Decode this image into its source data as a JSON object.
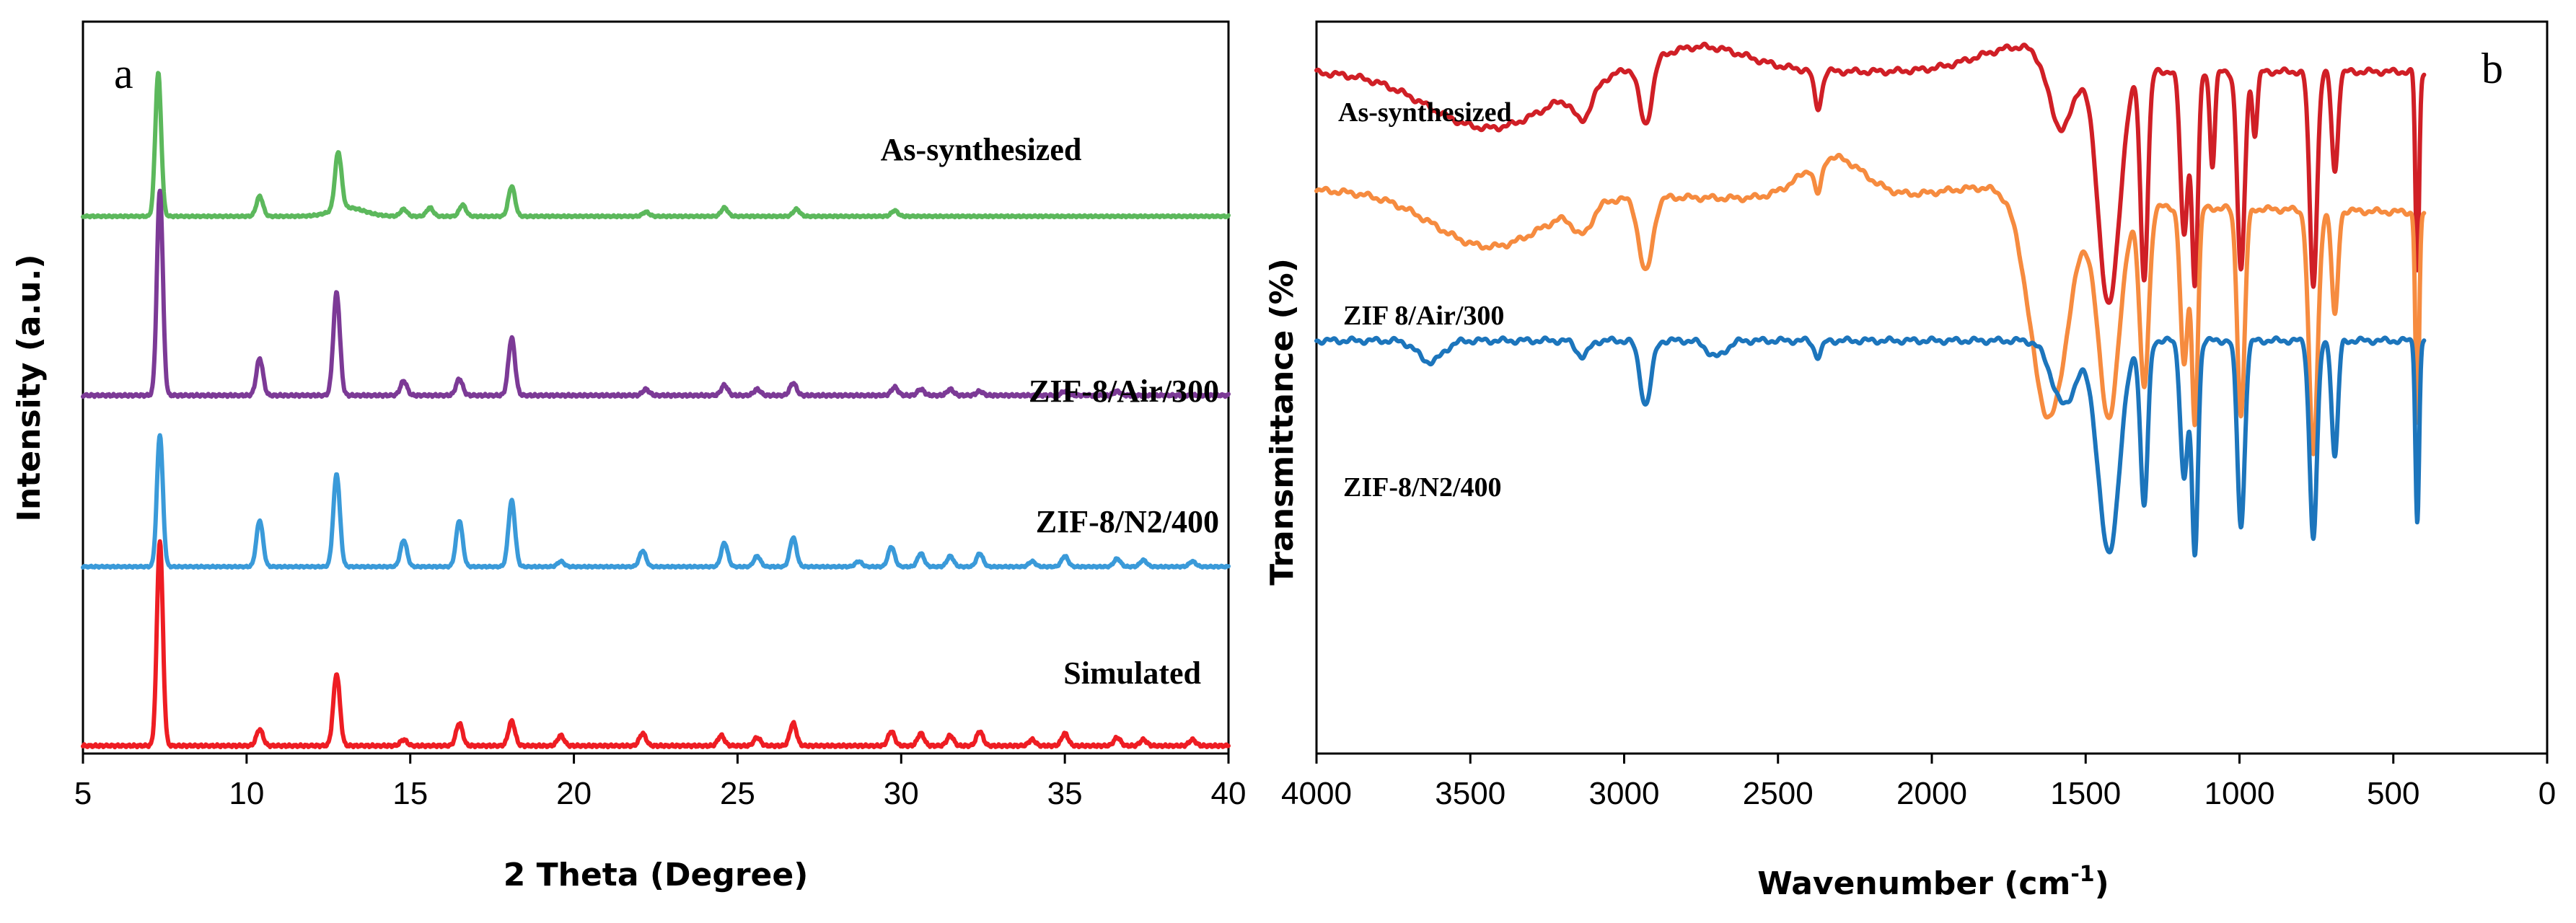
{
  "chart_data": [
    {
      "panel": "a",
      "type": "line",
      "subtype": "xrd-patterns-stacked",
      "xlabel": "2 Theta (Degree)",
      "ylabel": "Intensity (a.u.)",
      "xlim": [
        5,
        40
      ],
      "xticks": [
        5,
        10,
        15,
        20,
        25,
        30,
        35,
        40
      ],
      "yticks": [],
      "series": [
        {
          "name": "As-synthesized",
          "color": "#5cb85c",
          "baseline": 3.45,
          "scale": 0.92,
          "peaks": [
            [
              7.3,
              1.0
            ],
            [
              10.4,
              0.14
            ],
            [
              12.8,
              0.4
            ],
            [
              14.8,
              0.05
            ],
            [
              15.6,
              0.06
            ],
            [
              16.6,
              0.08
            ],
            [
              18.1,
              0.21
            ],
            [
              22.2,
              0.03
            ],
            [
              24.6,
              0.06
            ],
            [
              26.8,
              0.05
            ],
            [
              29.8,
              0.04
            ]
          ]
        },
        {
          "name": "ZIF-8/Air/300",
          "color": "#7c3a96",
          "baseline": 2.3,
          "scale": 1.32,
          "peaks": [
            [
              7.35,
              1.0
            ],
            [
              10.4,
              0.18
            ],
            [
              12.75,
              0.5
            ],
            [
              14.8,
              0.07
            ],
            [
              16.5,
              0.08
            ],
            [
              18.1,
              0.28
            ],
            [
              22.2,
              0.03
            ],
            [
              24.6,
              0.05
            ],
            [
              25.6,
              0.03
            ],
            [
              26.7,
              0.06
            ],
            [
              29.8,
              0.04
            ],
            [
              30.6,
              0.03
            ],
            [
              31.5,
              0.03
            ],
            [
              32.4,
              0.02
            ],
            [
              35,
              0.02
            ],
            [
              36.6,
              0.02
            ]
          ]
        },
        {
          "name": "ZIF-8/N2/400",
          "color": "#3a9ad9",
          "baseline": 1.2,
          "scale": 0.85,
          "peaks": [
            [
              7.35,
              1.0
            ],
            [
              10.4,
              0.35
            ],
            [
              12.75,
              0.7
            ],
            [
              14.8,
              0.2
            ],
            [
              16.5,
              0.35
            ],
            [
              18.1,
              0.5
            ],
            [
              19.6,
              0.04
            ],
            [
              22.1,
              0.12
            ],
            [
              24.6,
              0.18
            ],
            [
              25.6,
              0.08
            ],
            [
              26.7,
              0.22
            ],
            [
              28.7,
              0.04
            ],
            [
              29.7,
              0.15
            ],
            [
              30.6,
              0.1
            ],
            [
              31.5,
              0.08
            ],
            [
              32.4,
              0.1
            ],
            [
              34.0,
              0.04
            ],
            [
              35.0,
              0.08
            ],
            [
              36.6,
              0.06
            ],
            [
              37.4,
              0.05
            ],
            [
              38.9,
              0.04
            ]
          ]
        },
        {
          "name": "Simulated",
          "color": "#ee1d23",
          "baseline": 0.05,
          "scale": 1.32,
          "peaks": [
            [
              7.35,
              1.0
            ],
            [
              10.4,
              0.08
            ],
            [
              12.75,
              0.35
            ],
            [
              14.8,
              0.03
            ],
            [
              16.5,
              0.11
            ],
            [
              18.1,
              0.12
            ],
            [
              19.6,
              0.05
            ],
            [
              22.1,
              0.06
            ],
            [
              24.5,
              0.05
            ],
            [
              25.6,
              0.04
            ],
            [
              26.7,
              0.11
            ],
            [
              29.7,
              0.07
            ],
            [
              30.6,
              0.06
            ],
            [
              31.5,
              0.05
            ],
            [
              32.4,
              0.07
            ],
            [
              34.0,
              0.03
            ],
            [
              35.0,
              0.06
            ],
            [
              36.6,
              0.04
            ],
            [
              37.4,
              0.03
            ],
            [
              38.9,
              0.03
            ]
          ]
        }
      ]
    },
    {
      "panel": "b",
      "type": "line",
      "subtype": "ftir-spectra-stacked",
      "xlabel": "Wavenumber (cm-1)",
      "xlabel_main": "Wavenumber (cm",
      "xlabel_sup": "-1",
      "xlabel_tail": ")",
      "ylabel": "Transmittance (%)",
      "xlim": [
        4000,
        0
      ],
      "xticks": [
        4000,
        3500,
        3000,
        2500,
        2000,
        1500,
        1000,
        500,
        0
      ],
      "yticks": [],
      "x_end": 400,
      "series": [
        {
          "name": "As-synthesized",
          "color": "#d01f26",
          "baseline": 10.0,
          "slope": 0,
          "scale": 2.0,
          "bands": [
            [
              3440,
              200,
              0.9
            ],
            [
              3135,
              30,
              0.5
            ],
            [
              2930,
              20,
              1.0
            ],
            [
              2370,
              12,
              0.6
            ],
            [
              1580,
              40,
              1.2
            ],
            [
              1425,
              35,
              3.8
            ],
            [
              1310,
              12,
              3.3
            ],
            [
              1180,
              12,
              2.6
            ],
            [
              1145,
              10,
              3.4
            ],
            [
              1088,
              8,
              1.5
            ],
            [
              995,
              12,
              3.2
            ],
            [
              950,
              8,
              1.0
            ],
            [
              760,
              12,
              3.4
            ],
            [
              690,
              10,
              1.6
            ],
            [
              422,
              6,
              3.2
            ]
          ],
          "bumps": [
            [
              1700,
              150,
              0.4
            ],
            [
              2750,
              150,
              0.4
            ]
          ]
        },
        {
          "name": "ZIF 8/Air/300",
          "color": "#f68b3f",
          "baseline": 5.9,
          "slope": 0.0002,
          "scale": 1.7,
          "bands": [
            [
              3440,
              180,
              1.0
            ],
            [
              3135,
              30,
              0.5
            ],
            [
              2930,
              22,
              1.4
            ],
            [
              2370,
              12,
              0.6
            ],
            [
              1620,
              60,
              4.2
            ],
            [
              1425,
              35,
              4.0
            ],
            [
              1310,
              15,
              3.4
            ],
            [
              1180,
              12,
              3.0
            ],
            [
              1145,
              10,
              4.0
            ],
            [
              995,
              12,
              3.9
            ],
            [
              760,
              14,
              4.6
            ],
            [
              690,
              10,
              2.0
            ],
            [
              422,
              6,
              4.0
            ]
          ],
          "bumps": [
            [
              2320,
              100,
              0.8
            ],
            [
              1800,
              200,
              0.3
            ]
          ]
        },
        {
          "name": "ZIF-8/N2/400",
          "color": "#1c75bc",
          "baseline": 1.4,
          "slope": 0,
          "scale": 1.7,
          "bands": [
            [
              3630,
              40,
              0.4
            ],
            [
              3135,
              20,
              0.3
            ],
            [
              2930,
              18,
              1.2
            ],
            [
              2700,
              30,
              0.3
            ],
            [
              2370,
              12,
              0.3
            ],
            [
              1570,
              40,
              1.2
            ],
            [
              1425,
              35,
              4.0
            ],
            [
              1310,
              12,
              3.1
            ],
            [
              1180,
              12,
              2.6
            ],
            [
              1145,
              10,
              4.0
            ],
            [
              995,
              12,
              3.5
            ],
            [
              760,
              12,
              3.7
            ],
            [
              690,
              10,
              2.2
            ],
            [
              422,
              6,
              3.4
            ]
          ],
          "bumps": []
        }
      ]
    }
  ]
}
